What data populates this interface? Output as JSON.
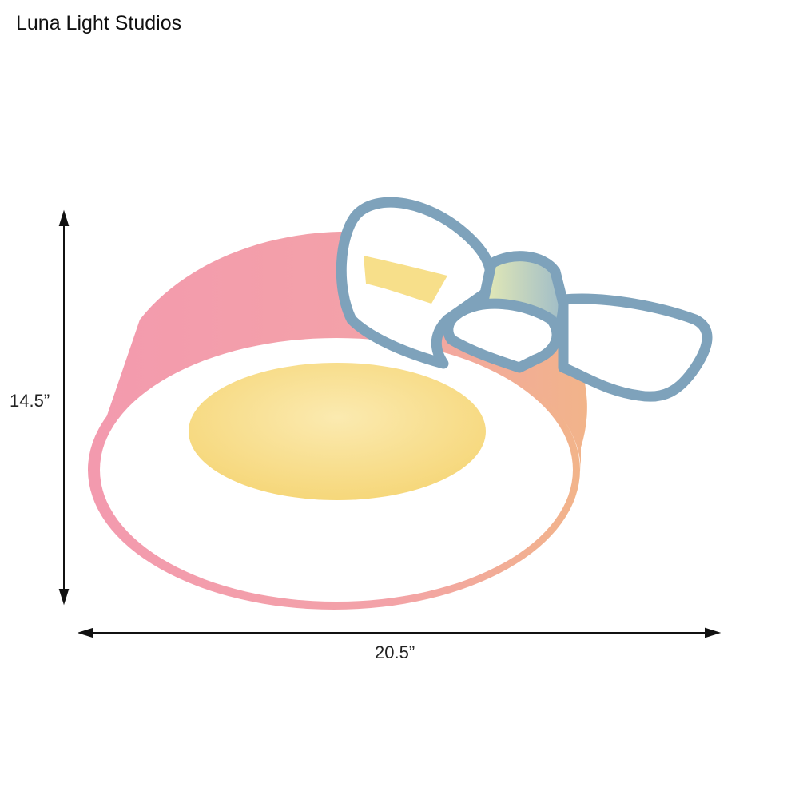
{
  "brand": {
    "name": "Luna Light Studios"
  },
  "product": {
    "height_label": "14.5”",
    "width_label": "20.5”",
    "colors": {
      "rim": "#eb8f9f",
      "bow": "#7ea2bb",
      "glow": "#f7e08c",
      "diffuser": "#ffffff"
    }
  }
}
